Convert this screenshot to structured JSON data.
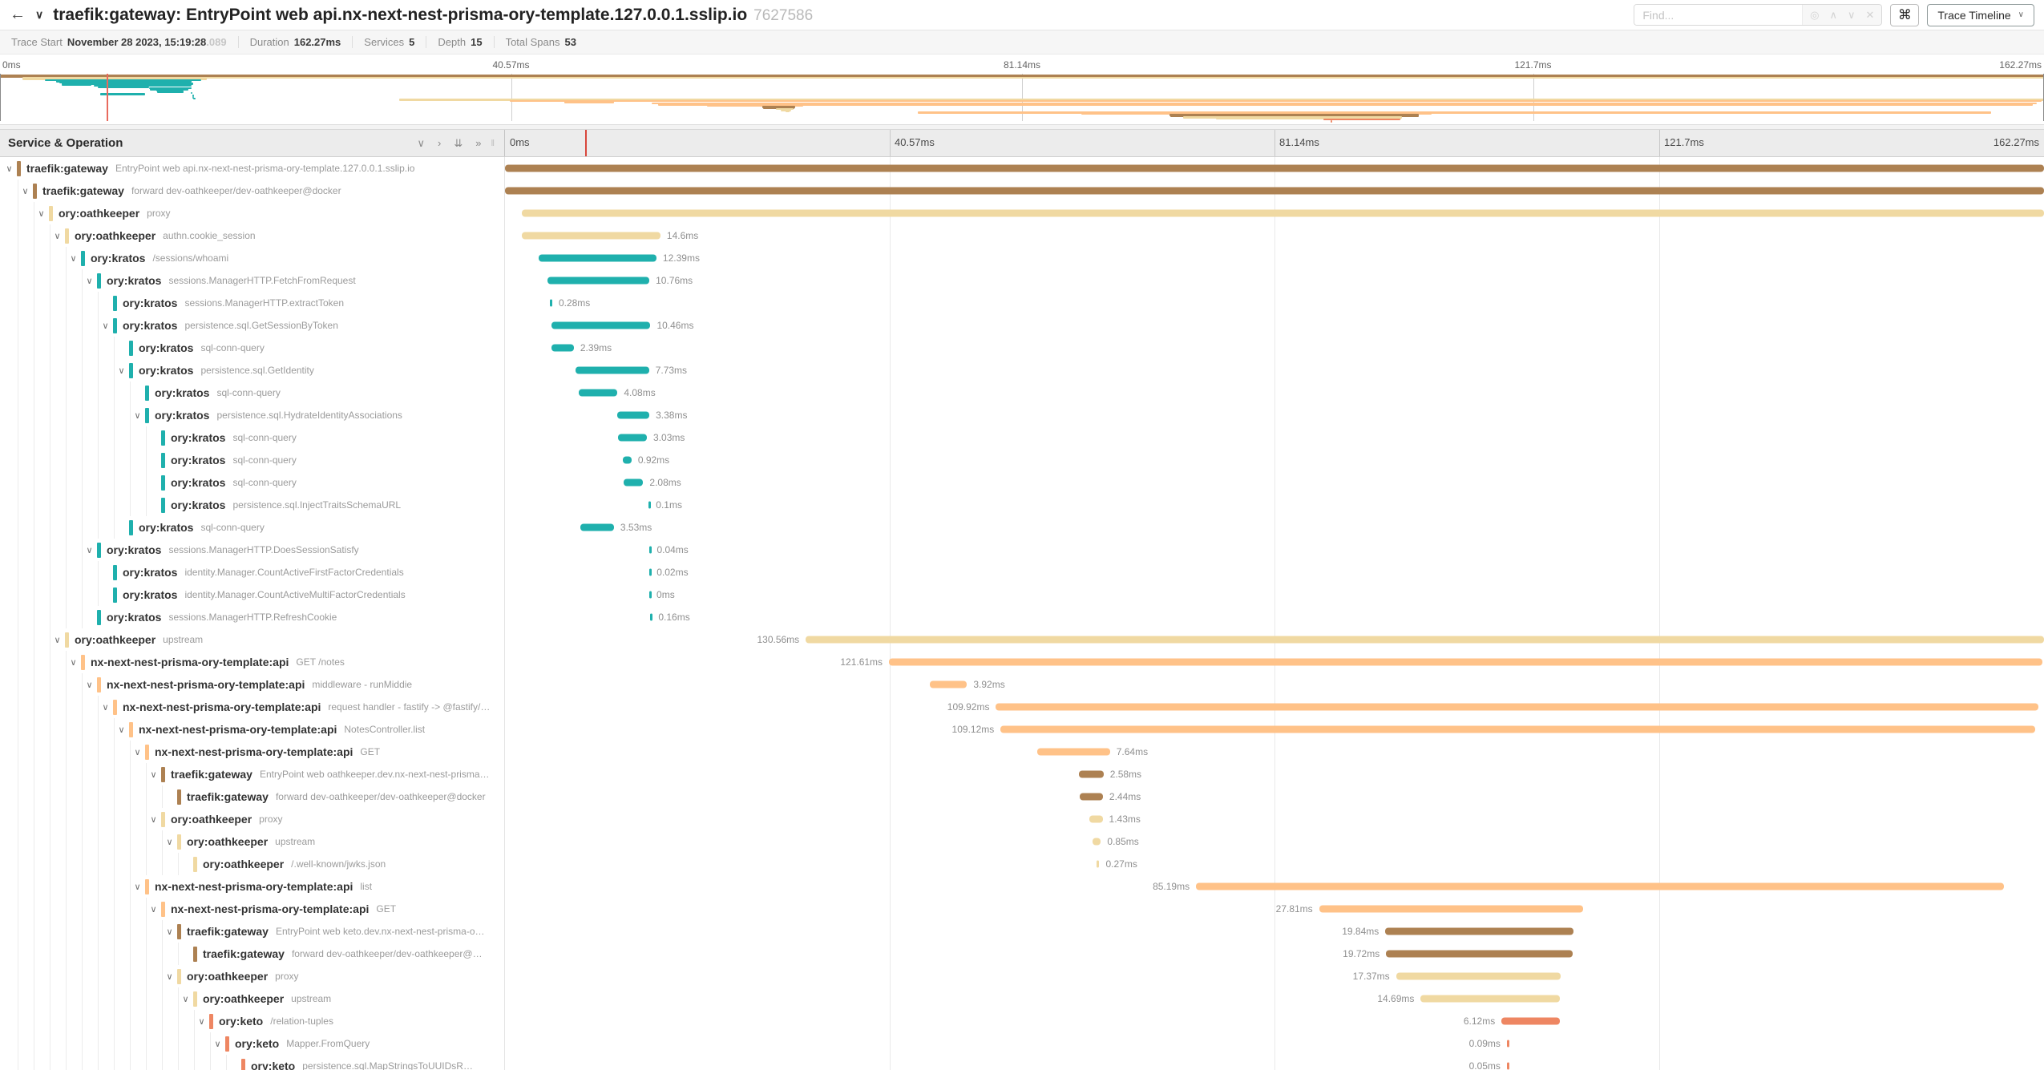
{
  "header": {
    "back_icon": "←",
    "collapse_icon": "∨",
    "title": "traefik:gateway: EntryPoint web api.nx-next-nest-prisma-ory-template.127.0.0.1.sslip.io",
    "trace_id": "7627586",
    "find_placeholder": "Find...",
    "find_icons": {
      "scope": "◎",
      "prev": "∧",
      "next": "∨",
      "clear": "✕"
    },
    "keyboard_shortcut_icon": "⌘",
    "view_selector": "Trace Timeline",
    "view_caret": "∨"
  },
  "meta": {
    "items": [
      {
        "label": "Trace Start",
        "value": "November 28 2023, 15:19:28",
        "suffix": ".089"
      },
      {
        "label": "Duration",
        "value": "162.27ms",
        "suffix": ""
      },
      {
        "label": "Services",
        "value": "5",
        "suffix": ""
      },
      {
        "label": "Depth",
        "value": "15",
        "suffix": ""
      },
      {
        "label": "Total Spans",
        "value": "53",
        "suffix": ""
      }
    ]
  },
  "timeline": {
    "column_header": "Service & Operation",
    "collapse_icons": [
      "∨",
      "›",
      "⇊",
      "»"
    ],
    "resizer_icon": "‖",
    "ticks": [
      {
        "label": "0ms",
        "pct": 0
      },
      {
        "label": "40.57ms",
        "pct": 25
      },
      {
        "label": "81.14ms",
        "pct": 50
      },
      {
        "label": "121.7ms",
        "pct": 75
      },
      {
        "label": "162.27ms",
        "pct": 100
      }
    ],
    "cursor_pct": 5.2
  },
  "service_colors": {
    "traefik:gateway": "#ad8152",
    "ory:oathkeeper": "#f0d9a2",
    "ory:kratos": "#1fb0ad",
    "nx-next-nest-prisma-ory-template:api": "#ffc288",
    "ory:keto": "#ee8662"
  },
  "spans": [
    {
      "service": "traefik:gateway",
      "operation": "EntryPoint web api.nx-next-nest-prisma-ory-template.127.0.0.1.sslip.io",
      "depth": 0,
      "expandable": true,
      "start_pct": 0,
      "width_pct": 100,
      "duration": "",
      "label_side": "none"
    },
    {
      "service": "traefik:gateway",
      "operation": "forward dev-oathkeeper/dev-oathkeeper@docker",
      "depth": 1,
      "expandable": true,
      "start_pct": 0,
      "width_pct": 100,
      "duration": "",
      "label_side": "none"
    },
    {
      "service": "ory:oathkeeper",
      "operation": "proxy",
      "depth": 2,
      "expandable": true,
      "start_pct": 1.1,
      "width_pct": 98.9,
      "duration": "",
      "label_side": "none"
    },
    {
      "service": "ory:oathkeeper",
      "operation": "authn.cookie_session",
      "depth": 3,
      "expandable": true,
      "start_pct": 1.1,
      "width_pct": 9.0,
      "duration": "14.6ms",
      "label_side": "right"
    },
    {
      "service": "ory:kratos",
      "operation": "/sessions/whoami",
      "depth": 4,
      "expandable": true,
      "start_pct": 2.2,
      "width_pct": 7.64,
      "duration": "12.39ms",
      "label_side": "right"
    },
    {
      "service": "ory:kratos",
      "operation": "sessions.ManagerHTTP.FetchFromRequest",
      "depth": 5,
      "expandable": true,
      "start_pct": 2.75,
      "width_pct": 6.63,
      "duration": "10.76ms",
      "label_side": "right"
    },
    {
      "service": "ory:kratos",
      "operation": "sessions.ManagerHTTP.extractToken",
      "depth": 6,
      "expandable": false,
      "start_pct": 2.9,
      "width_pct": 0.17,
      "duration": "0.28ms",
      "label_side": "right"
    },
    {
      "service": "ory:kratos",
      "operation": "persistence.sql.GetSessionByToken",
      "depth": 6,
      "expandable": true,
      "start_pct": 3.0,
      "width_pct": 6.45,
      "duration": "10.46ms",
      "label_side": "right"
    },
    {
      "service": "ory:kratos",
      "operation": "sql-conn-query",
      "depth": 7,
      "expandable": false,
      "start_pct": 3.0,
      "width_pct": 1.47,
      "duration": "2.39ms",
      "label_side": "right"
    },
    {
      "service": "ory:kratos",
      "operation": "persistence.sql.GetIdentity",
      "depth": 7,
      "expandable": true,
      "start_pct": 4.6,
      "width_pct": 4.76,
      "duration": "7.73ms",
      "label_side": "right"
    },
    {
      "service": "ory:kratos",
      "operation": "sql-conn-query",
      "depth": 8,
      "expandable": false,
      "start_pct": 4.8,
      "width_pct": 2.51,
      "duration": "4.08ms",
      "label_side": "right"
    },
    {
      "service": "ory:kratos",
      "operation": "persistence.sql.HydrateIdentityAssociations",
      "depth": 8,
      "expandable": true,
      "start_pct": 7.3,
      "width_pct": 2.08,
      "duration": "3.38ms",
      "label_side": "right"
    },
    {
      "service": "ory:kratos",
      "operation": "sql-conn-query",
      "depth": 9,
      "expandable": false,
      "start_pct": 7.35,
      "width_pct": 1.87,
      "duration": "3.03ms",
      "label_side": "right"
    },
    {
      "service": "ory:kratos",
      "operation": "sql-conn-query",
      "depth": 9,
      "expandable": false,
      "start_pct": 7.65,
      "width_pct": 0.57,
      "duration": "0.92ms",
      "label_side": "right"
    },
    {
      "service": "ory:kratos",
      "operation": "sql-conn-query",
      "depth": 9,
      "expandable": false,
      "start_pct": 7.7,
      "width_pct": 1.28,
      "duration": "2.08ms",
      "label_side": "right"
    },
    {
      "service": "ory:kratos",
      "operation": "persistence.sql.InjectTraitsSchemaURL",
      "depth": 9,
      "expandable": false,
      "start_pct": 9.32,
      "width_pct": 0.07,
      "duration": "0.1ms",
      "label_side": "right"
    },
    {
      "service": "ory:kratos",
      "operation": "sql-conn-query",
      "depth": 7,
      "expandable": false,
      "start_pct": 4.9,
      "width_pct": 2.18,
      "duration": "3.53ms",
      "label_side": "right"
    },
    {
      "service": "ory:kratos",
      "operation": "sessions.ManagerHTTP.DoesSessionSatisfy",
      "depth": 5,
      "expandable": true,
      "start_pct": 9.4,
      "width_pct": 0.05,
      "duration": "0.04ms",
      "label_side": "right"
    },
    {
      "service": "ory:kratos",
      "operation": "identity.Manager.CountActiveFirstFactorCredentials",
      "depth": 6,
      "expandable": false,
      "start_pct": 9.4,
      "width_pct": 0.04,
      "duration": "0.02ms",
      "label_side": "right"
    },
    {
      "service": "ory:kratos",
      "operation": "identity.Manager.CountActiveMultiFactorCredentials",
      "depth": 6,
      "expandable": false,
      "start_pct": 9.4,
      "width_pct": 0.03,
      "duration": "0ms",
      "label_side": "right"
    },
    {
      "service": "ory:kratos",
      "operation": "sessions.ManagerHTTP.RefreshCookie",
      "depth": 5,
      "expandable": false,
      "start_pct": 9.45,
      "width_pct": 0.1,
      "duration": "0.16ms",
      "label_side": "right"
    },
    {
      "service": "ory:oathkeeper",
      "operation": "upstream",
      "depth": 3,
      "expandable": true,
      "start_pct": 19.54,
      "width_pct": 80.46,
      "duration": "130.56ms",
      "label_side": "left"
    },
    {
      "service": "nx-next-nest-prisma-ory-template:api",
      "operation": "GET /notes",
      "depth": 4,
      "expandable": true,
      "start_pct": 24.95,
      "width_pct": 74.95,
      "duration": "121.61ms",
      "label_side": "left"
    },
    {
      "service": "nx-next-nest-prisma-ory-template:api",
      "operation": "middleware - runMiddie",
      "depth": 5,
      "expandable": true,
      "start_pct": 27.6,
      "width_pct": 2.42,
      "duration": "3.92ms",
      "label_side": "right"
    },
    {
      "service": "nx-next-nest-prisma-ory-template:api",
      "operation": "request handler - fastify -> @fastify/…",
      "depth": 6,
      "expandable": true,
      "start_pct": 31.9,
      "width_pct": 67.74,
      "duration": "109.92ms",
      "label_side": "left"
    },
    {
      "service": "nx-next-nest-prisma-ory-template:api",
      "operation": "NotesController.list",
      "depth": 7,
      "expandable": true,
      "start_pct": 32.2,
      "width_pct": 67.25,
      "duration": "109.12ms",
      "label_side": "left"
    },
    {
      "service": "nx-next-nest-prisma-ory-template:api",
      "operation": "GET",
      "depth": 8,
      "expandable": true,
      "start_pct": 34.6,
      "width_pct": 4.71,
      "duration": "7.64ms",
      "label_side": "right"
    },
    {
      "service": "traefik:gateway",
      "operation": "EntryPoint web oathkeeper.dev.nx-next-nest-prisma…",
      "depth": 9,
      "expandable": true,
      "start_pct": 37.3,
      "width_pct": 1.59,
      "duration": "2.58ms",
      "label_side": "right"
    },
    {
      "service": "traefik:gateway",
      "operation": "forward dev-oathkeeper/dev-oathkeeper@docker",
      "depth": 10,
      "expandable": false,
      "start_pct": 37.35,
      "width_pct": 1.5,
      "duration": "2.44ms",
      "label_side": "right"
    },
    {
      "service": "ory:oathkeeper",
      "operation": "proxy",
      "depth": 9,
      "expandable": true,
      "start_pct": 37.95,
      "width_pct": 0.88,
      "duration": "1.43ms",
      "label_side": "right"
    },
    {
      "service": "ory:oathkeeper",
      "operation": "upstream",
      "depth": 10,
      "expandable": true,
      "start_pct": 38.2,
      "width_pct": 0.52,
      "duration": "0.85ms",
      "label_side": "right"
    },
    {
      "service": "ory:oathkeeper",
      "operation": "/.well-known/jwks.json",
      "depth": 11,
      "expandable": false,
      "start_pct": 38.45,
      "width_pct": 0.17,
      "duration": "0.27ms",
      "label_side": "right"
    },
    {
      "service": "nx-next-nest-prisma-ory-template:api",
      "operation": "list",
      "depth": 8,
      "expandable": true,
      "start_pct": 44.9,
      "width_pct": 52.5,
      "duration": "85.19ms",
      "label_side": "left"
    },
    {
      "service": "nx-next-nest-prisma-ory-template:api",
      "operation": "GET",
      "depth": 9,
      "expandable": true,
      "start_pct": 52.9,
      "width_pct": 17.14,
      "duration": "27.81ms",
      "label_side": "left"
    },
    {
      "service": "traefik:gateway",
      "operation": "EntryPoint web keto.dev.nx-next-nest-prisma-o…",
      "depth": 10,
      "expandable": true,
      "start_pct": 57.2,
      "width_pct": 12.23,
      "duration": "19.84ms",
      "label_side": "left"
    },
    {
      "service": "traefik:gateway",
      "operation": "forward dev-oathkeeper/dev-oathkeeper@…",
      "depth": 11,
      "expandable": false,
      "start_pct": 57.25,
      "width_pct": 12.15,
      "duration": "19.72ms",
      "label_side": "left"
    },
    {
      "service": "ory:oathkeeper",
      "operation": "proxy",
      "depth": 10,
      "expandable": true,
      "start_pct": 57.9,
      "width_pct": 10.7,
      "duration": "17.37ms",
      "label_side": "left"
    },
    {
      "service": "ory:oathkeeper",
      "operation": "upstream",
      "depth": 11,
      "expandable": true,
      "start_pct": 59.5,
      "width_pct": 9.05,
      "duration": "14.69ms",
      "label_side": "left"
    },
    {
      "service": "ory:keto",
      "operation": "/relation-tuples",
      "depth": 12,
      "expandable": true,
      "start_pct": 64.75,
      "width_pct": 3.77,
      "duration": "6.12ms",
      "label_side": "left"
    },
    {
      "service": "ory:keto",
      "operation": "Mapper.FromQuery",
      "depth": 13,
      "expandable": true,
      "start_pct": 65.1,
      "width_pct": 0.06,
      "duration": "0.09ms",
      "label_side": "left"
    },
    {
      "service": "ory:keto",
      "operation": "persistence.sql.MapStringsToUUIDsR…",
      "depth": 14,
      "expandable": false,
      "start_pct": 65.1,
      "width_pct": 0.03,
      "duration": "0.05ms",
      "label_side": "left"
    }
  ]
}
